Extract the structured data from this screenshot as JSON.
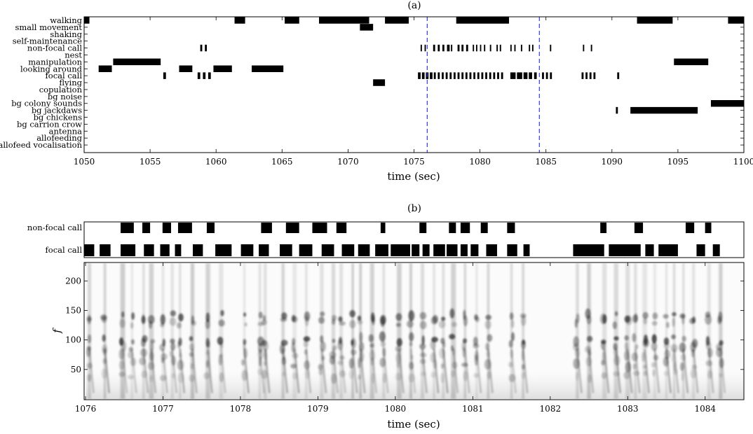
{
  "chart_data": [
    {
      "type": "event-raster",
      "title": "(a)",
      "xlabel": "time (sec)",
      "xlim": [
        1050,
        1100
      ],
      "xticks": [
        1050,
        1055,
        1060,
        1065,
        1070,
        1075,
        1080,
        1085,
        1090,
        1095,
        1100
      ],
      "categories": [
        "walking",
        "small movement",
        "shaking",
        "self-maintenance",
        "non-focal call",
        "nest",
        "manipulation",
        "looking around",
        "focal call",
        "flying",
        "copulation",
        "bg noise",
        "bg colony sounds",
        "bg jackdaws",
        "bg chickens",
        "bg carrion crow",
        "antenna",
        "allofeeding",
        "allofeed vocalisation"
      ],
      "marker_lines": [
        1076,
        1084.5
      ],
      "marker_color": "#3a3ad0",
      "events": {
        "walking": [
          [
            1050.0,
            1050.4
          ],
          [
            1061.4,
            1062.2
          ],
          [
            1065.2,
            1066.3
          ],
          [
            1067.8,
            1071.6
          ],
          [
            1072.8,
            1074.6
          ],
          [
            1078.2,
            1082.2
          ],
          [
            1091.9,
            1094.6
          ],
          [
            1098.8,
            1100.0
          ]
        ],
        "small movement": [
          [
            1070.9,
            1071.9
          ]
        ],
        "non-focal call": [
          [
            1058.8,
            1058.95
          ],
          [
            1059.15,
            1059.3
          ],
          [
            1075.5,
            1075.6
          ],
          [
            1075.8,
            1075.9
          ],
          [
            1076.45,
            1076.6
          ],
          [
            1076.8,
            1076.95
          ],
          [
            1077.15,
            1077.3
          ],
          [
            1077.5,
            1077.7
          ],
          [
            1077.8,
            1077.9
          ],
          [
            1078.3,
            1078.45
          ],
          [
            1078.6,
            1078.75
          ],
          [
            1078.95,
            1079.1
          ],
          [
            1079.45,
            1079.55
          ],
          [
            1079.7,
            1079.8
          ],
          [
            1080.0,
            1080.08
          ],
          [
            1080.3,
            1080.4
          ],
          [
            1080.75,
            1080.85
          ],
          [
            1081.25,
            1081.35
          ],
          [
            1081.5,
            1081.6
          ],
          [
            1082.3,
            1082.4
          ],
          [
            1082.6,
            1082.7
          ],
          [
            1083.1,
            1083.2
          ],
          [
            1083.7,
            1083.8
          ],
          [
            1083.95,
            1084.05
          ],
          [
            1085.3,
            1085.4
          ],
          [
            1087.8,
            1087.9
          ],
          [
            1088.4,
            1088.5
          ]
        ],
        "manipulation": [
          [
            1052.2,
            1055.8
          ],
          [
            1094.7,
            1097.3
          ]
        ],
        "looking around": [
          [
            1051.1,
            1052.1
          ],
          [
            1057.2,
            1058.2
          ],
          [
            1059.8,
            1061.2
          ],
          [
            1062.7,
            1065.1
          ]
        ],
        "focal call": [
          [
            1056.0,
            1056.2
          ],
          [
            1058.6,
            1058.8
          ],
          [
            1059.0,
            1059.2
          ],
          [
            1059.4,
            1059.6
          ],
          [
            1075.3,
            1075.5
          ],
          [
            1075.6,
            1075.8
          ],
          [
            1075.9,
            1076.1
          ],
          [
            1076.2,
            1076.4
          ],
          [
            1076.5,
            1076.65
          ],
          [
            1076.8,
            1076.95
          ],
          [
            1077.1,
            1077.25
          ],
          [
            1077.4,
            1077.55
          ],
          [
            1077.7,
            1077.85
          ],
          [
            1078.0,
            1078.15
          ],
          [
            1078.3,
            1078.45
          ],
          [
            1078.6,
            1078.75
          ],
          [
            1078.9,
            1079.05
          ],
          [
            1079.2,
            1079.35
          ],
          [
            1079.5,
            1079.65
          ],
          [
            1079.8,
            1079.95
          ],
          [
            1080.1,
            1080.25
          ],
          [
            1080.4,
            1080.55
          ],
          [
            1080.7,
            1080.85
          ],
          [
            1081.0,
            1081.15
          ],
          [
            1081.3,
            1081.45
          ],
          [
            1081.6,
            1081.75
          ],
          [
            1082.3,
            1082.7
          ],
          [
            1082.8,
            1083.2
          ],
          [
            1083.3,
            1083.6
          ],
          [
            1083.7,
            1083.95
          ],
          [
            1084.1,
            1084.3
          ],
          [
            1084.7,
            1084.85
          ],
          [
            1085.0,
            1085.15
          ],
          [
            1085.3,
            1085.45
          ],
          [
            1087.7,
            1087.85
          ],
          [
            1088.0,
            1088.15
          ],
          [
            1088.3,
            1088.45
          ],
          [
            1088.6,
            1088.75
          ],
          [
            1090.4,
            1090.55
          ]
        ],
        "flying": [
          [
            1071.9,
            1072.8
          ]
        ],
        "bg colony sounds": [
          [
            1097.5,
            1100.0
          ]
        ],
        "bg jackdaws": [
          [
            1090.3,
            1090.45
          ],
          [
            1091.4,
            1096.5
          ]
        ]
      }
    },
    {
      "type": "event-raster",
      "title": "(b)",
      "xlim": [
        1076,
        1084.5
      ],
      "categories": [
        "non-focal call",
        "focal call"
      ],
      "events": {
        "non-focal call": [
          [
            1076.47,
            1076.64
          ],
          [
            1076.75,
            1076.85
          ],
          [
            1077.01,
            1077.12
          ],
          [
            1077.21,
            1077.39
          ],
          [
            1077.58,
            1077.68
          ],
          [
            1078.28,
            1078.42
          ],
          [
            1078.6,
            1078.77
          ],
          [
            1078.94,
            1079.13
          ],
          [
            1079.25,
            1079.38
          ],
          [
            1079.82,
            1079.88
          ],
          [
            1080.32,
            1080.41
          ],
          [
            1080.7,
            1080.79
          ],
          [
            1080.85,
            1080.97
          ],
          [
            1081.11,
            1081.2
          ],
          [
            1081.45,
            1081.55
          ],
          [
            1082.65,
            1082.73
          ],
          [
            1083.09,
            1083.2
          ],
          [
            1083.75,
            1083.86
          ],
          [
            1084.0,
            1084.08
          ]
        ],
        "focal call": [
          [
            1076.0,
            1076.13
          ],
          [
            1076.2,
            1076.34
          ],
          [
            1076.47,
            1076.66
          ],
          [
            1076.77,
            1076.9
          ],
          [
            1076.98,
            1077.1
          ],
          [
            1077.17,
            1077.25
          ],
          [
            1077.4,
            1077.53
          ],
          [
            1077.69,
            1077.9
          ],
          [
            1078.02,
            1078.18
          ],
          [
            1078.25,
            1078.38
          ],
          [
            1078.52,
            1078.68
          ],
          [
            1078.77,
            1078.94
          ],
          [
            1079.06,
            1079.22
          ],
          [
            1079.32,
            1079.48
          ],
          [
            1079.53,
            1079.68
          ],
          [
            1079.75,
            1079.92
          ],
          [
            1079.95,
            1080.2
          ],
          [
            1080.22,
            1080.32
          ],
          [
            1080.36,
            1080.45
          ],
          [
            1080.5,
            1080.65
          ],
          [
            1080.67,
            1080.81
          ],
          [
            1080.85,
            1080.94
          ],
          [
            1080.98,
            1081.08
          ],
          [
            1081.18,
            1081.32
          ],
          [
            1081.45,
            1081.58
          ],
          [
            1081.66,
            1081.74
          ],
          [
            1082.3,
            1082.7
          ],
          [
            1082.76,
            1083.17
          ],
          [
            1083.23,
            1083.34
          ],
          [
            1083.4,
            1083.65
          ],
          [
            1083.89,
            1084.0
          ],
          [
            1084.1,
            1084.19
          ]
        ]
      }
    },
    {
      "type": "heatmap",
      "ylabel": "f",
      "xlabel": "time (sec)",
      "xlim": [
        1076,
        1084.5
      ],
      "ylim": [
        0,
        230
      ],
      "xticks": [
        1076,
        1077,
        1078,
        1079,
        1080,
        1081,
        1082,
        1083,
        1084
      ],
      "yticks": [
        50,
        100,
        150,
        200
      ],
      "colormap": "grayscale",
      "call_onsets": [
        1076.05,
        1076.25,
        1076.48,
        1076.6,
        1076.75,
        1076.85,
        1077.0,
        1077.12,
        1077.22,
        1077.38,
        1077.58,
        1077.75,
        1078.05,
        1078.25,
        1078.32,
        1078.55,
        1078.7,
        1078.85,
        1079.05,
        1079.2,
        1079.3,
        1079.45,
        1079.55,
        1079.7,
        1079.85,
        1080.05,
        1080.2,
        1080.35,
        1080.5,
        1080.62,
        1080.75,
        1080.9,
        1081.05,
        1081.2,
        1081.5,
        1081.65,
        1082.35,
        1082.5,
        1082.7,
        1082.85,
        1083.0,
        1083.1,
        1083.22,
        1083.35,
        1083.5,
        1083.6,
        1083.72,
        1083.85,
        1084.05,
        1084.2
      ]
    }
  ]
}
